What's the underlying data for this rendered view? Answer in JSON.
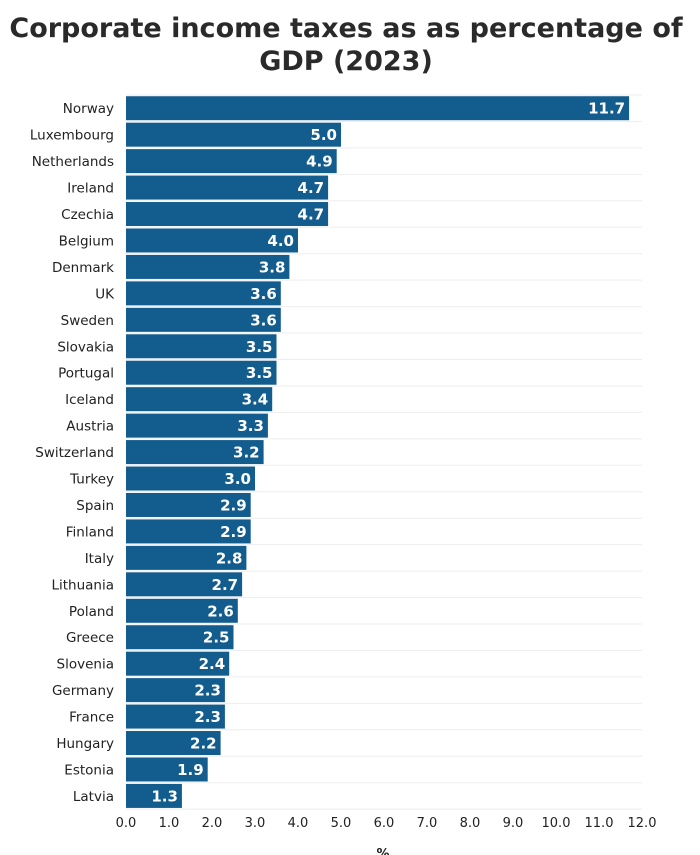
{
  "chart_data": {
    "type": "bar",
    "orientation": "horizontal",
    "title": "Corporate income taxes as as percentage of GDP (2023)",
    "xlabel": "%",
    "ylabel": "",
    "xlim": [
      0,
      12
    ],
    "x_ticks": [
      "0.0",
      "1.0",
      "2.0",
      "3.0",
      "4.0",
      "5.0",
      "6.0",
      "7.0",
      "8.0",
      "9.0",
      "10.0",
      "11.0",
      "12.0"
    ],
    "grid": "horizontal light lines",
    "bar_color": "#135c8e",
    "categories": [
      "Norway",
      "Luxembourg",
      "Netherlands",
      "Ireland",
      "Czechia",
      "Belgium",
      "Denmark",
      "UK",
      "Sweden",
      "Slovakia",
      "Portugal",
      "Iceland",
      "Austria",
      "Switzerland",
      "Turkey",
      "Spain",
      "Finland",
      "Italy",
      "Lithuania",
      "Poland",
      "Greece",
      "Slovenia",
      "Germany",
      "France",
      "Hungary",
      "Estonia",
      "Latvia"
    ],
    "values": [
      11.7,
      5.0,
      4.9,
      4.7,
      4.7,
      4.0,
      3.8,
      3.6,
      3.6,
      3.5,
      3.5,
      3.4,
      3.3,
      3.2,
      3.0,
      2.9,
      2.9,
      2.8,
      2.7,
      2.6,
      2.5,
      2.4,
      2.3,
      2.3,
      2.2,
      1.9,
      1.3
    ],
    "value_labels": [
      "11.7",
      "5.0",
      "4.9",
      "4.7",
      "4.7",
      "4.0",
      "3.8",
      "3.6",
      "3.6",
      "3.5",
      "3.5",
      "3.4",
      "3.3",
      "3.2",
      "3.0",
      "2.9",
      "2.9",
      "2.8",
      "2.7",
      "2.6",
      "2.5",
      "2.4",
      "2.3",
      "2.3",
      "2.2",
      "1.9",
      "1.3"
    ]
  }
}
